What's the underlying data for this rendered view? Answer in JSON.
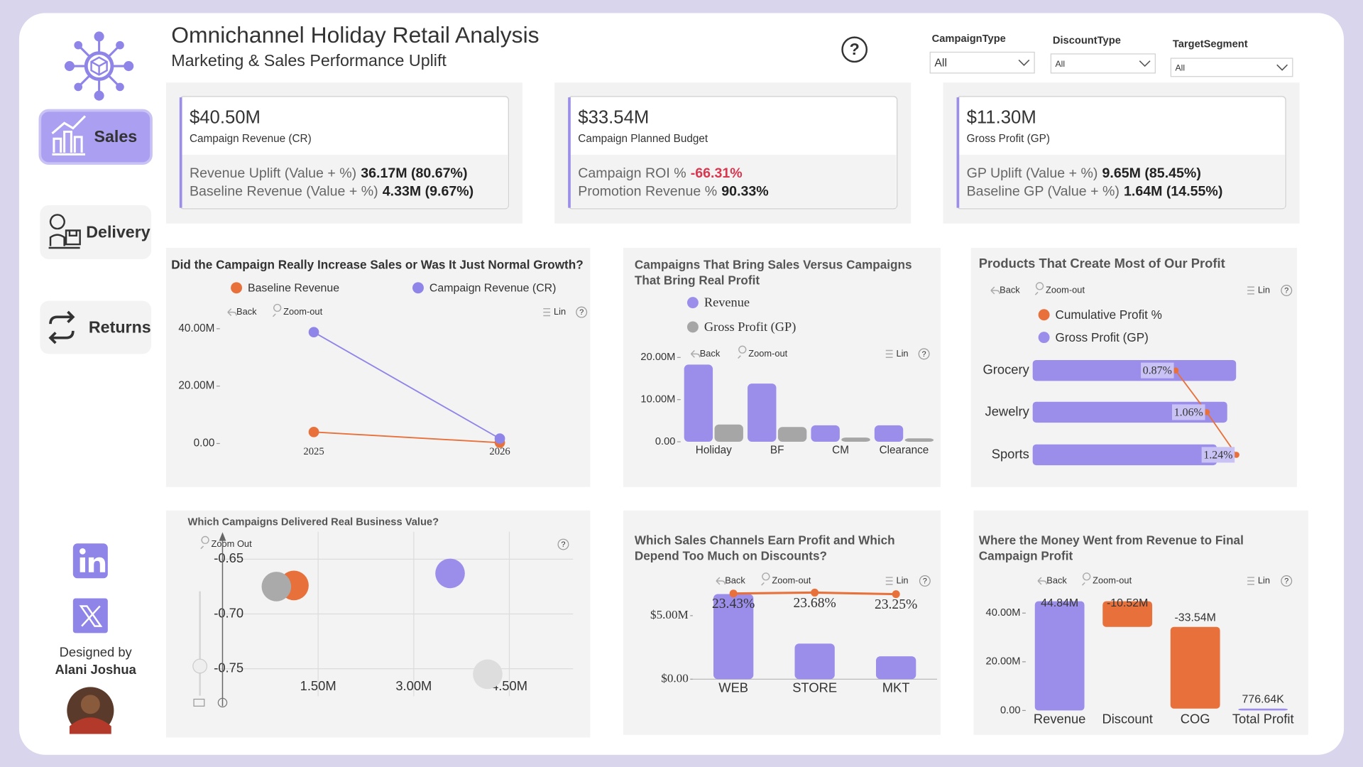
{
  "header": {
    "title": "Omnichannel Holiday Retail Analysis",
    "subtitle": "Marketing & Sales Performance Uplift",
    "help": "?"
  },
  "filters": [
    {
      "label": "CampaignType",
      "value": "All"
    },
    {
      "label": "DiscountType",
      "value": "All"
    },
    {
      "label": "TargetSegment",
      "value": "All"
    }
  ],
  "nav": {
    "items": [
      "Sales",
      "Delivery",
      "Returns"
    ],
    "designed_by": "Designed by",
    "author": "Alani Joshua"
  },
  "kpis": [
    {
      "value": "$40.50M",
      "label": "Campaign Revenue (CR)",
      "lines": [
        {
          "label": "Revenue Uplift (Value + %)",
          "value": "36.17M (80.67%)"
        },
        {
          "label": "Baseline Revenue (Value + %)",
          "value": "4.33M (9.67%)"
        }
      ]
    },
    {
      "value": "$33.54M",
      "label": "Campaign Planned Budget",
      "lines": [
        {
          "label": "Campaign ROI %",
          "value": "-66.31%",
          "color": "#d9364f"
        },
        {
          "label": "Promotion Revenue %",
          "value": "90.33%"
        }
      ]
    },
    {
      "value": "$11.30M",
      "label": "Gross Profit (GP)",
      "lines": [
        {
          "label": "GP Uplift (Value + %)",
          "value": "9.65M (85.45%)"
        },
        {
          "label": "Baseline GP (Value + %)",
          "value": "1.64M (14.55%)"
        }
      ]
    }
  ],
  "chart_data": [
    {
      "type": "line",
      "title": "Did the Campaign Really Increase Sales or Was It Just Normal Growth?",
      "toolbar": [
        "Back",
        "Zoom-out",
        "Lin"
      ],
      "categories": [
        "2025",
        "2026"
      ],
      "series": [
        {
          "name": "Baseline Revenue",
          "color": "#e8703a",
          "values": [
            4000000,
            300000
          ]
        },
        {
          "name": "Campaign Revenue (CR)",
          "color": "#8f84e8",
          "values": [
            38800000,
            1700000
          ]
        }
      ],
      "ylim": [
        0,
        42000000
      ],
      "yticks": [
        {
          "value": 0,
          "label": "0.00"
        },
        {
          "value": 20000000,
          "label": "20.00M"
        },
        {
          "value": 40000000,
          "label": "40.00M"
        }
      ]
    },
    {
      "type": "bar",
      "title": "Campaigns That Bring Sales Versus Campaigns That Bring Real Profit",
      "toolbar": [
        "Back",
        "Zoom-out",
        "Lin"
      ],
      "categories": [
        "Holiday",
        "BF",
        "CM",
        "Clearance"
      ],
      "series": [
        {
          "name": "Revenue",
          "color": "#9b8eeb",
          "values": [
            18300000,
            13800000,
            3900000,
            3900000
          ]
        },
        {
          "name": "Gross Profit (GP)",
          "color": "#a6a6a6",
          "values": [
            4100000,
            3500000,
            1000000,
            800000
          ]
        }
      ],
      "ylim": [
        0,
        21000000
      ],
      "yticks": [
        {
          "value": 0,
          "label": "0.00"
        },
        {
          "value": 10000000,
          "label": "10.00M"
        },
        {
          "value": 20000000,
          "label": "20.00M"
        }
      ]
    },
    {
      "type": "hbar",
      "title": "Products That Create Most of Our Profit",
      "toolbar": [
        "Back",
        "Zoom-out",
        "Lin"
      ],
      "categories": [
        "Grocery",
        "Jewelry",
        "Sports"
      ],
      "series": [
        {
          "name": "Cumulative Profit %",
          "color": "#e8703a",
          "values": [
            0.87,
            1.06,
            1.24
          ],
          "value_labels": [
            "0.87%",
            "1.06%",
            "1.24%"
          ],
          "axis": "x2"
        },
        {
          "name": "Gross Profit (GP)",
          "color": "#9b8eeb",
          "values": [
            3900000,
            3730000,
            3530000
          ]
        }
      ],
      "xlim": [
        0,
        4000000
      ],
      "x2lim": [
        0,
        1.27
      ]
    },
    {
      "type": "scatter",
      "title": "Which Campaigns Delivered Real Business Value?",
      "toolbar": [
        "Zoom Out"
      ],
      "x": [
        1120000,
        845000,
        3570000,
        4160000
      ],
      "values": [
        -0.674,
        -0.675,
        -0.663,
        -0.755
      ],
      "colors": [
        "#e8703a",
        "#aaaaaa",
        "#9b8eeb",
        "#dddddd"
      ],
      "xlim": [
        0,
        5500000
      ],
      "xticks": [
        {
          "value": 1500000,
          "label": "1.50M"
        },
        {
          "value": 3000000,
          "label": "3.00M"
        },
        {
          "value": 4500000,
          "label": "4.50M"
        }
      ],
      "ylim": [
        -0.775,
        -0.625
      ],
      "yticks": [
        -0.65,
        {
          "value": -0.7,
          "label": "-0.70"
        },
        -0.75
      ],
      "grid": true
    },
    {
      "type": "combo",
      "title": "Which Sales Channels Earn Profit and Which Depend Too Much on Discounts?",
      "toolbar": [
        "Back",
        "Zoom-out",
        "Lin"
      ],
      "categories": [
        "WEB",
        "STORE",
        "MKT"
      ],
      "series": [
        {
          "color": "#9b8eeb",
          "values": [
            6700000,
            2800000,
            1800000
          ]
        },
        {
          "color": "#e8703a",
          "values": [
            23.43,
            23.68,
            23.25
          ],
          "value_labels": [
            "23.43%",
            "23.68%",
            "23.25%"
          ],
          "axis": "y2"
        }
      ],
      "ylim": [
        0,
        7050000
      ],
      "yticks": [
        {
          "value": 0,
          "label": "$0.00"
        },
        {
          "value": 5000000,
          "label": "$5.00M"
        }
      ],
      "y2lim": [
        0,
        24.5
      ]
    },
    {
      "type": "waterfall",
      "title": "Where the Money Went from Revenue to Final Campaign Profit",
      "toolbar": [
        "Back",
        "Zoom-out",
        "Lin"
      ],
      "categories": [
        "Revenue",
        "Discount",
        "COG",
        "Total Profit"
      ],
      "values": [
        44840000,
        -10520000,
        -33540000,
        776640
      ],
      "value_labels": [
        "44.84M",
        "-10.52M",
        "-33.54M",
        "776.64K"
      ],
      "totals": [
        false,
        false,
        false,
        true
      ],
      "colors": [
        "#9b8eeb",
        "#e8703a",
        "#e8703a",
        "#9b8eeb"
      ],
      "ylim": [
        0,
        46000000
      ],
      "yticks": [
        {
          "value": 0,
          "label": "0.00"
        },
        {
          "value": 20000000,
          "label": "20.00M"
        },
        {
          "value": 40000000,
          "label": "40.00M"
        }
      ]
    }
  ]
}
